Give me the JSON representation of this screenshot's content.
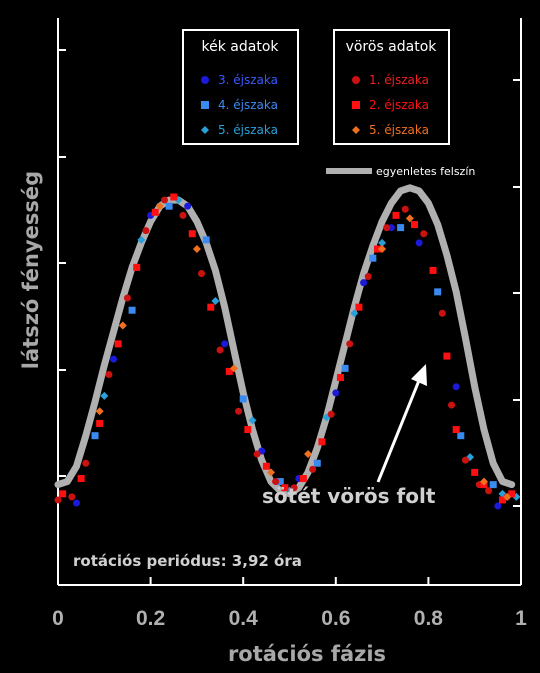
{
  "chart_data": {
    "type": "scatter",
    "title": "",
    "xlabel": "rotációs fázis",
    "ylabel": "látszó fényesség",
    "xlim": [
      0,
      1
    ],
    "xticks": [
      "0",
      "0.2",
      "0.4",
      "0.6",
      "0.8",
      "1"
    ],
    "model": {
      "name": "egyenletes felszín",
      "x": [
        0,
        0.02,
        0.04,
        0.06,
        0.08,
        0.1,
        0.12,
        0.14,
        0.16,
        0.18,
        0.2,
        0.22,
        0.24,
        0.26,
        0.28,
        0.3,
        0.32,
        0.34,
        0.36,
        0.38,
        0.4,
        0.42,
        0.44,
        0.46,
        0.48,
        0.5,
        0.52,
        0.54,
        0.56,
        0.58,
        0.6,
        0.62,
        0.64,
        0.66,
        0.68,
        0.7,
        0.72,
        0.74,
        0.76,
        0.78,
        0.8,
        0.82,
        0.84,
        0.86,
        0.88,
        0.9,
        0.92,
        0.94,
        0.96,
        0.98
      ],
      "y": [
        0.06,
        0.07,
        0.12,
        0.22,
        0.33,
        0.45,
        0.56,
        0.67,
        0.77,
        0.85,
        0.92,
        0.97,
        0.99,
        0.99,
        0.97,
        0.92,
        0.85,
        0.76,
        0.64,
        0.5,
        0.36,
        0.24,
        0.14,
        0.07,
        0.04,
        0.03,
        0.05,
        0.1,
        0.18,
        0.28,
        0.4,
        0.52,
        0.64,
        0.75,
        0.84,
        0.92,
        0.98,
        1.02,
        1.03,
        1.02,
        0.98,
        0.91,
        0.81,
        0.69,
        0.54,
        0.38,
        0.24,
        0.13,
        0.07,
        0.06
      ]
    },
    "legend_groups": [
      {
        "heading": "kék adatok",
        "entries": [
          "3. éjszaka",
          "4. éjszaka",
          "5. éjszaka"
        ]
      },
      {
        "heading": "vörös adatok",
        "entries": [
          "1. éjszaka",
          "2. éjszaka",
          "5. éjszaka"
        ]
      }
    ],
    "series": [
      {
        "name": "3. éjszaka",
        "group": "kék adatok",
        "marker": "circle",
        "color": "#1a1ad8",
        "x": [
          0.04,
          0.12,
          0.2,
          0.28,
          0.36,
          0.44,
          0.52,
          0.6,
          0.66,
          0.72,
          0.78,
          0.86,
          0.95
        ],
        "y": [
          0.0,
          0.47,
          0.94,
          0.97,
          0.52,
          0.17,
          0.08,
          0.36,
          0.72,
          0.9,
          0.85,
          0.38,
          -0.01
        ]
      },
      {
        "name": "4. éjszaka",
        "group": "kék adatok",
        "marker": "square",
        "color": "#3a8af0",
        "x": [
          0.08,
          0.16,
          0.24,
          0.32,
          0.4,
          0.48,
          0.56,
          0.62,
          0.68,
          0.74,
          0.82,
          0.87,
          0.94
        ],
        "y": [
          0.22,
          0.63,
          0.97,
          0.86,
          0.34,
          0.07,
          0.13,
          0.44,
          0.8,
          0.9,
          0.69,
          0.22,
          0.06
        ]
      },
      {
        "name": "5. éjszaka",
        "group": "kék adatok",
        "marker": "diamond",
        "color": "#2aa0d8",
        "x": [
          0.1,
          0.18,
          0.26,
          0.34,
          0.42,
          0.5,
          0.58,
          0.64,
          0.7,
          0.89,
          0.96,
          0.99
        ],
        "y": [
          0.35,
          0.86,
          0.99,
          0.66,
          0.27,
          0.04,
          0.28,
          0.62,
          0.85,
          0.15,
          0.03,
          0.02
        ]
      },
      {
        "name": "1. éjszaka",
        "group": "vörös adatok",
        "marker": "circle",
        "color": "#cc1111",
        "x": [
          0.0,
          0.03,
          0.06,
          0.11,
          0.15,
          0.19,
          0.23,
          0.27,
          0.31,
          0.35,
          0.39,
          0.43,
          0.47,
          0.51,
          0.55,
          0.59,
          0.63,
          0.67,
          0.71,
          0.75,
          0.79,
          0.83,
          0.85,
          0.88,
          0.91,
          0.93,
          0.97
        ],
        "y": [
          0.01,
          0.02,
          0.13,
          0.42,
          0.67,
          0.89,
          0.99,
          0.94,
          0.75,
          0.5,
          0.3,
          0.16,
          0.07,
          0.05,
          0.11,
          0.29,
          0.52,
          0.74,
          0.9,
          0.96,
          0.88,
          0.62,
          0.32,
          0.14,
          0.06,
          0.04,
          0.02
        ]
      },
      {
        "name": "2. éjszaka",
        "group": "vörös adatok",
        "marker": "square",
        "color": "#ff1010",
        "x": [
          0.01,
          0.05,
          0.09,
          0.13,
          0.17,
          0.21,
          0.25,
          0.29,
          0.33,
          0.37,
          0.41,
          0.45,
          0.49,
          0.53,
          0.57,
          0.61,
          0.65,
          0.69,
          0.73,
          0.77,
          0.81,
          0.84,
          0.86,
          0.9,
          0.92,
          0.96,
          0.98
        ],
        "y": [
          0.03,
          0.08,
          0.26,
          0.52,
          0.77,
          0.95,
          1.0,
          0.88,
          0.64,
          0.43,
          0.24,
          0.12,
          0.05,
          0.08,
          0.2,
          0.41,
          0.64,
          0.83,
          0.94,
          0.91,
          0.76,
          0.48,
          0.24,
          0.1,
          0.06,
          0.01,
          0.03
        ]
      },
      {
        "name": "5. éjszaka",
        "group": "vörös adatok",
        "marker": "diamond",
        "color": "#f07020",
        "x": [
          0.09,
          0.14,
          0.22,
          0.3,
          0.38,
          0.46,
          0.54,
          0.7,
          0.76,
          0.92,
          0.97
        ],
        "y": [
          0.3,
          0.58,
          0.97,
          0.83,
          0.44,
          0.1,
          0.16,
          0.83,
          0.93,
          0.07,
          0.02
        ]
      }
    ],
    "annotations": {
      "spot": "sötét vörös folt",
      "period": "rotációs periódus: 3,92 óra"
    },
    "grid": false
  }
}
